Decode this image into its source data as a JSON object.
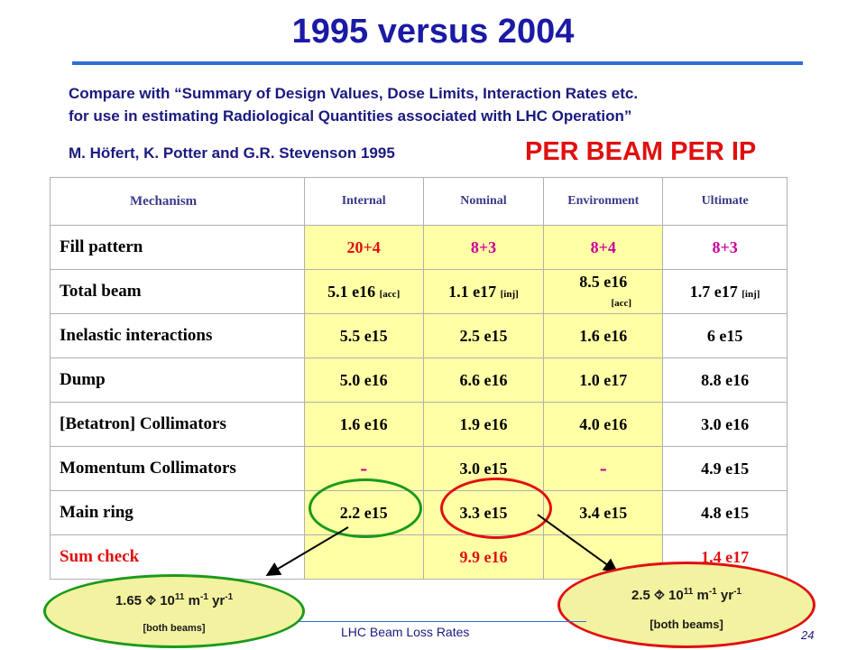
{
  "title": "1995 versus 2004",
  "compare_line1": "Compare with “Summary of Design Values, Dose Limits, Interaction Rates etc.",
  "compare_line2": "for use in estimating Radiological Quantities associated with LHC Operation”",
  "authors": "M. Höfert, K. Potter and G.R. Stevenson  1995",
  "per_beam": "PER BEAM PER IP",
  "table": {
    "headers": [
      "Mechanism",
      "Internal",
      "Nominal",
      "Environment",
      "Ultimate"
    ],
    "rows": [
      {
        "label": "Fill pattern",
        "internal": "20+4",
        "nominal": "8+3",
        "environment": "8+4",
        "ultimate": "8+3"
      },
      {
        "label": "Total beam",
        "internal": "5.1 e16",
        "internal_note": "[acc]",
        "nominal": "1.1 e17",
        "nominal_note": "[inj]",
        "environment": "8.5 e16",
        "environment_note": "[acc]",
        "ultimate": "1.7 e17",
        "ultimate_note": "[inj]"
      },
      {
        "label": "Inelastic interactions",
        "internal": "5.5 e15",
        "nominal": "2.5 e15",
        "environment": "1.6 e16",
        "ultimate": "6 e15"
      },
      {
        "label": "Dump",
        "internal": "5.0 e16",
        "nominal": "6.6 e16",
        "environment": "1.0 e17",
        "ultimate": "8.8 e16"
      },
      {
        "label": "[Betatron] Collimators",
        "internal": "1.6 e16",
        "nominal": "1.9 e16",
        "environment": "4.0 e16",
        "ultimate": "3.0 e16"
      },
      {
        "label": "Momentum Collimators",
        "internal": "-",
        "nominal": "3.0 e15",
        "environment": "-",
        "ultimate": "4.9 e15"
      },
      {
        "label": "Main ring",
        "internal": "2.2 e15",
        "nominal": "3.3 e15",
        "environment": "3.4 e15",
        "ultimate": "4.8 e15"
      },
      {
        "label": "Sum check",
        "internal": "",
        "nominal": "9.9 e16",
        "environment": "",
        "ultimate": "1.4 e17"
      }
    ]
  },
  "callout_left": {
    "value": "1.65 ",
    "symbol": "⯑",
    "exp_text": " 10",
    "exp": "11",
    "unit1": " m",
    "unit1_exp": "-1",
    "unit2": " yr",
    "unit2_exp": "-1",
    "note": "[both beams]"
  },
  "callout_right": {
    "value": "2.5 ",
    "symbol": "⯑",
    "exp_text": " 10",
    "exp": "11",
    "unit1": " m",
    "unit1_exp": "-1",
    "unit2": " yr",
    "unit2_exp": "-1",
    "note": "[both beams]"
  },
  "footer": "LHC Beam Loss Rates",
  "page_number": "24",
  "colors": {
    "title": "#1a1aa6",
    "accent_red": "#e01010",
    "yellow_cell": "#ffffa6",
    "green_circle": "#1a9a1a"
  }
}
